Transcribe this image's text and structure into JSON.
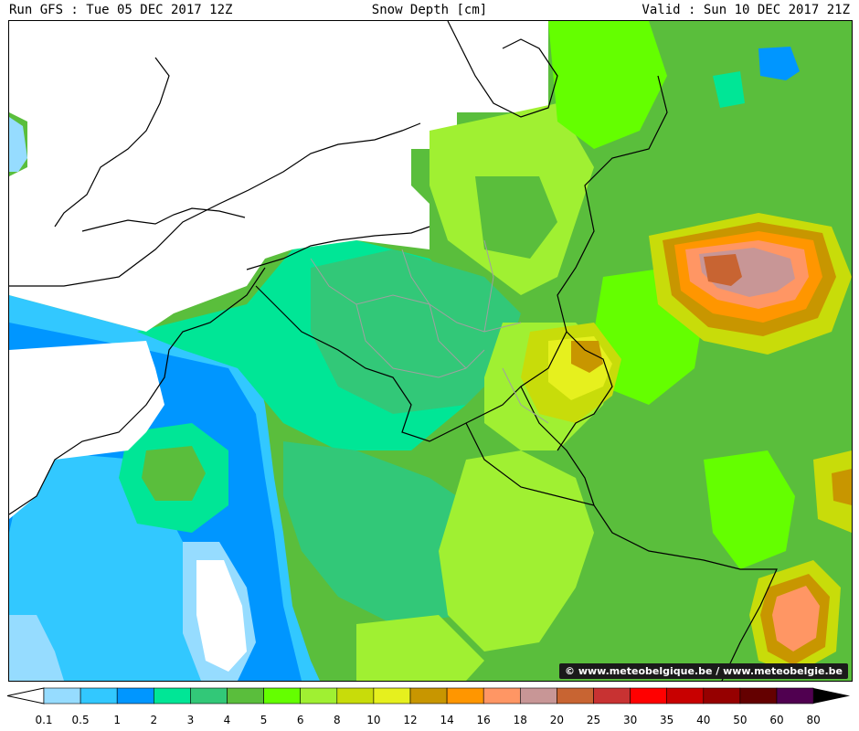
{
  "header": {
    "run": "Run GFS : Tue 05 DEC 2017 12Z",
    "title": "Snow Depth [cm]",
    "valid": "Valid : Sun 10 DEC 2017 21Z"
  },
  "credit": "© www.meteobelgique.be / www.meteobelgie.be",
  "legend": {
    "ticks": [
      "0.1",
      "0.5",
      "1",
      "2",
      "3",
      "4",
      "5",
      "6",
      "8",
      "10",
      "12",
      "14",
      "16",
      "18",
      "20",
      "25",
      "30",
      "35",
      "40",
      "50",
      "60",
      "80"
    ],
    "colors": [
      "#96dcff",
      "#32c8ff",
      "#0096ff",
      "#00e696",
      "#32c878",
      "#5abe3c",
      "#64ff00",
      "#a0f032",
      "#c8dc0a",
      "#e6f01e",
      "#c89600",
      "#ff9600",
      "#ff9664",
      "#c89696",
      "#c86432",
      "#c83232",
      "#ff0000",
      "#c80000",
      "#960000",
      "#640000",
      "#500050"
    ]
  },
  "map": {
    "colors": {
      "white": "#ffffff",
      "c1": "#96dcff",
      "c2": "#32c8ff",
      "c3": "#0096ff",
      "c4": "#00e696",
      "c5": "#32c878",
      "c6": "#5abe3c",
      "c7": "#64ff00",
      "c8": "#a0f032",
      "c9": "#c8dc0a",
      "c10": "#e6f01e",
      "c11": "#c89600",
      "c12": "#ff9600",
      "c13": "#ff9664",
      "c14": "#c89696",
      "c15": "#c86432"
    }
  }
}
